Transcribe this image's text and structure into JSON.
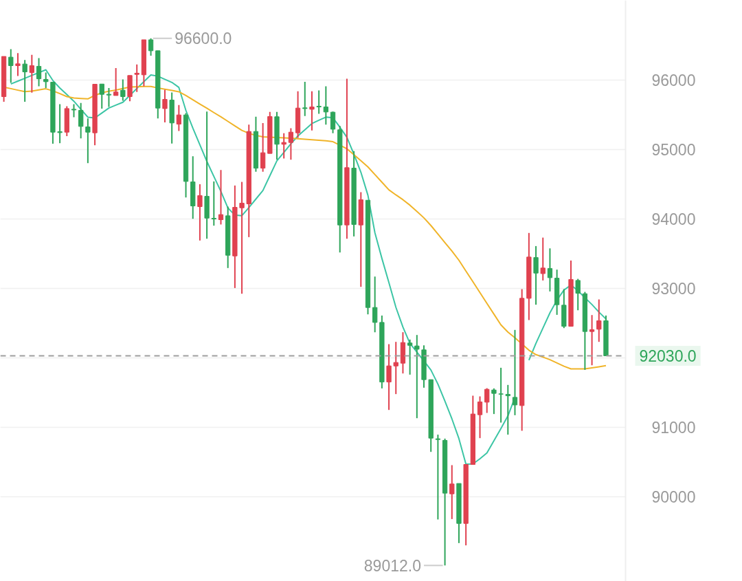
{
  "chart_data": {
    "type": "candlestick",
    "categories": [
      null,
      null,
      null,
      null,
      null,
      null,
      null,
      null,
      null,
      null,
      null,
      null,
      null,
      null,
      null,
      null,
      null,
      null,
      null,
      null,
      null,
      null,
      null,
      null,
      null,
      null,
      null,
      null,
      null,
      null,
      null,
      null,
      null,
      null,
      null,
      null,
      null,
      null,
      null,
      null,
      null,
      null,
      null,
      null,
      null,
      null,
      null,
      null,
      null,
      null,
      null,
      null,
      null,
      null,
      null,
      null,
      null,
      null,
      null,
      null,
      null,
      null,
      null,
      null,
      null,
      null,
      null,
      null,
      null,
      null,
      null,
      null,
      null,
      null,
      null,
      null,
      null,
      null,
      null,
      null,
      null,
      null,
      null,
      null,
      null,
      null,
      null
    ],
    "ylim": [
      88783,
      97148
    ],
    "yticks": [
      90000,
      91000,
      {
        "value": 92000,
        "label": null
      },
      93000,
      94000,
      95000,
      96000
    ],
    "tick_labels": "y",
    "grid": "y",
    "series": [
      {
        "ohlc": [
          [
            95762,
            96340,
            95689,
            96340
          ],
          [
            96330,
            96445,
            95960,
            96208
          ],
          [
            96208,
            96389,
            96059,
            96234
          ],
          [
            96231,
            96290,
            95689,
            96118
          ],
          [
            96108,
            96363,
            95818,
            96208
          ],
          [
            96198,
            96316,
            95911,
            96019
          ],
          [
            96010,
            96108,
            95887,
            95977
          ],
          [
            95970,
            95970,
            95085,
            95250
          ],
          [
            95257,
            95653,
            95092,
            95244
          ],
          [
            95250,
            95623,
            95194,
            95590
          ],
          [
            95580,
            95653,
            95465,
            95570
          ],
          [
            95564,
            95670,
            95161,
            95333
          ],
          [
            95326,
            95448,
            94805,
            95250
          ],
          [
            95241,
            95940,
            95062,
            95940
          ],
          [
            95943,
            95943,
            95590,
            95795
          ],
          [
            95795,
            95887,
            95614,
            95785
          ],
          [
            95778,
            96174,
            95778,
            95828
          ],
          [
            95854,
            96010,
            95703,
            95762
          ],
          [
            95762,
            96066,
            95696,
            96066
          ],
          [
            96082,
            96224,
            95828,
            96099
          ],
          [
            96076,
            96580,
            95911,
            96580
          ],
          [
            96580,
            96600,
            96350,
            96422
          ],
          [
            96422,
            96422,
            95448,
            95597
          ],
          [
            95590,
            95861,
            95392,
            95722
          ],
          [
            95712,
            95821,
            95086,
            95383
          ],
          [
            95366,
            95640,
            95267,
            95498
          ],
          [
            95498,
            95524,
            94310,
            94541
          ],
          [
            94534,
            94904,
            94003,
            94188
          ],
          [
            94178,
            94501,
            93690,
            94337
          ],
          [
            94327,
            95548,
            93716,
            94013
          ],
          [
            94010,
            94541,
            93904,
            94000
          ],
          [
            93990,
            94706,
            93921,
            94063
          ],
          [
            94046,
            94178,
            93294,
            93478
          ],
          [
            93468,
            94482,
            93006,
            94168
          ],
          [
            94161,
            94534,
            92924,
            94228
          ],
          [
            94218,
            95359,
            93739,
            95260
          ],
          [
            95260,
            95472,
            94680,
            94732
          ],
          [
            94732,
            95382,
            94680,
            94954
          ],
          [
            94944,
            95541,
            94944,
            95475
          ],
          [
            95472,
            95541,
            94854,
            95076
          ],
          [
            95076,
            95234,
            94871,
            95102
          ],
          [
            95102,
            95307,
            94854,
            95250
          ],
          [
            95241,
            95838,
            95168,
            95597
          ],
          [
            95600,
            95976,
            95482,
            95590
          ],
          [
            95580,
            95838,
            95274,
            95613
          ],
          [
            95623,
            95851,
            95514,
            95613
          ],
          [
            95613,
            95910,
            95359,
            95541
          ],
          [
            95538,
            95547,
            95234,
            95293
          ],
          [
            95284,
            95340,
            93518,
            93914
          ],
          [
            93914,
            96019,
            93716,
            94739
          ],
          [
            94732,
            94977,
            93749,
            93921
          ],
          [
            93914,
            94386,
            93023,
            94277
          ],
          [
            94270,
            94270,
            92627,
            92726
          ],
          [
            92726,
            93171,
            92369,
            92511
          ],
          [
            92511,
            92610,
            91561,
            91653
          ],
          [
            91653,
            92198,
            91251,
            91885
          ],
          [
            91884,
            92231,
            91479,
            91934
          ],
          [
            91924,
            92370,
            91776,
            92221
          ],
          [
            92215,
            92264,
            91759,
            92181
          ],
          [
            92172,
            92330,
            91132,
            92125
          ],
          [
            92116,
            92181,
            91571,
            91687
          ],
          [
            91687,
            91687,
            90647,
            90845
          ],
          [
            90835,
            90895,
            89674,
            90825
          ],
          [
            90812,
            90838,
            89012,
            90053
          ],
          [
            90043,
            90456,
            89680,
            90185
          ],
          [
            90192,
            90192,
            89334,
            89617
          ],
          [
            89617,
            90466,
            89301,
            90466
          ],
          [
            90466,
            91456,
            90466,
            91192
          ],
          [
            91182,
            91446,
            90845,
            91366
          ],
          [
            91363,
            91564,
            91208,
            91548
          ],
          [
            91538,
            91561,
            91192,
            91489
          ],
          [
            91482,
            91858,
            91069,
            91478
          ],
          [
            91475,
            91611,
            90895,
            91455
          ],
          [
            91432,
            92403,
            91175,
            91323
          ],
          [
            91314,
            92990,
            90951,
            92858
          ],
          [
            92858,
            93799,
            92545,
            93452
          ],
          [
            93445,
            93610,
            92766,
            93221
          ],
          [
            93214,
            93732,
            93115,
            93294
          ],
          [
            93287,
            93577,
            92957,
            93155
          ],
          [
            93148,
            93271,
            92620,
            92766
          ],
          [
            92759,
            92990,
            92429,
            92455
          ],
          [
            92455,
            93402,
            92455,
            93129
          ],
          [
            93115,
            93138,
            92686,
            92931
          ],
          [
            92924,
            92950,
            91828,
            92380
          ],
          [
            92380,
            92617,
            91894,
            92406
          ],
          [
            92413,
            92842,
            92231,
            92535
          ],
          [
            92535,
            92610,
            92030,
            92030
          ]
        ],
        "colors": [
          "#e0414f",
          "#2ea55a",
          "#e0414f",
          "#2ea55a",
          "#e0414f",
          "#2ea55a",
          "#2ea55a",
          "#2ea55a",
          "#2ea55a",
          "#e0414f",
          "#2ea55a",
          "#2ea55a",
          "#2ea55a",
          "#e0414f",
          "#2ea55a",
          "#2ea55a",
          "#e0414f",
          "#2ea55a",
          "#e0414f",
          "#e0414f",
          "#e0414f",
          "#2ea55a",
          "#2ea55a",
          "#e0414f",
          "#2ea55a",
          "#e0414f",
          "#2ea55a",
          "#2ea55a",
          "#e0414f",
          "#2ea55a",
          "#2ea55a",
          "#e0414f",
          "#2ea55a",
          "#e0414f",
          "#e0414f",
          "#e0414f",
          "#2ea55a",
          "#e0414f",
          "#e0414f",
          "#2ea55a",
          "#e0414f",
          "#e0414f",
          "#e0414f",
          "#2ea55a",
          "#e0414f",
          "#2ea55a",
          "#2ea55a",
          "#2ea55a",
          "#2ea55a",
          "#e0414f",
          "#2ea55a",
          "#e0414f",
          "#2ea55a",
          "#2ea55a",
          "#2ea55a",
          "#e0414f",
          "#e0414f",
          "#e0414f",
          "#2ea55a",
          "#2ea55a",
          "#2ea55a",
          "#2ea55a",
          "#2ea55a",
          "#2ea55a",
          "#e0414f",
          "#2ea55a",
          "#e0414f",
          "#e0414f",
          "#e0414f",
          "#e0414f",
          "#2ea55a",
          "#2ea55a",
          "#2ea55a",
          "#2ea55a",
          "#e0414f",
          "#e0414f",
          "#2ea55a",
          "#e0414f",
          "#2ea55a",
          "#2ea55a",
          "#2ea55a",
          "#e0414f",
          "#2ea55a",
          "#2ea55a",
          "#e0414f",
          "#e0414f",
          "#2ea55a"
        ]
      },
      {
        "type": "line",
        "color": "#3cc5a5",
        "values": [
          null,
          95944,
          95985,
          96026,
          96067,
          96108,
          96148,
          95994,
          95886,
          95791,
          95696,
          95580,
          95466,
          95455,
          95526,
          95597,
          95639,
          95680,
          95780,
          95880,
          95977,
          96073,
          96056,
          96011,
          95967,
          95894,
          95564,
          95307,
          95068,
          94829,
          94612,
          94397,
          94160,
          94056,
          94048,
          94165,
          94287,
          94409,
          94624,
          94838,
          94960,
          95082,
          95195,
          95284,
          95374,
          95422,
          95467,
          95457,
          95322,
          95177,
          94933,
          94673,
          94343,
          93802,
          93432,
          93085,
          92728,
          92444,
          92210,
          92084,
          91957,
          91826,
          91623,
          91379,
          91122,
          90838,
          90470,
          90473,
          90547,
          90632,
          90808,
          90984,
          91166,
          91430,
          null,
          91967,
          92209,
          92429,
          92649,
          92832,
          92977,
          93050,
          92967,
          92867,
          92769,
          92660,
          92561
        ]
      },
      {
        "type": "line",
        "color": "#f0b429",
        "values": [
          95899,
          95877,
          95855,
          95833,
          95841,
          95858,
          95875,
          95845,
          95805,
          95762,
          95742,
          95735,
          95729,
          95780,
          95817,
          95840,
          95856,
          95879,
          95901,
          95904,
          95907,
          95908,
          95887,
          95868,
          95851,
          95832,
          95779,
          95717,
          95655,
          95594,
          95532,
          95471,
          95406,
          95341,
          95276,
          95233,
          95204,
          95183,
          95178,
          95174,
          95169,
          95163,
          95156,
          95148,
          95141,
          95133,
          95125,
          95113,
          95063,
          95011,
          94926,
          94840,
          94750,
          94640,
          94530,
          94420,
          94347,
          94278,
          94199,
          94108,
          94016,
          93906,
          93783,
          93660,
          93538,
          93406,
          93250,
          93096,
          92941,
          92785,
          92630,
          92476,
          92371,
          92289,
          92201,
          92111,
          92047,
          92012,
          91974,
          91927,
          91880,
          91842,
          91842,
          91842,
          91856,
          91872,
          91890
        ]
      }
    ],
    "ref_lines": [
      {
        "axis": "y",
        "value": 92030,
        "label": "92030.0",
        "color": "#9e9e9e",
        "line_style": "dashed"
      }
    ],
    "annotations": [
      "96600.0",
      "89012.0"
    ]
  }
}
